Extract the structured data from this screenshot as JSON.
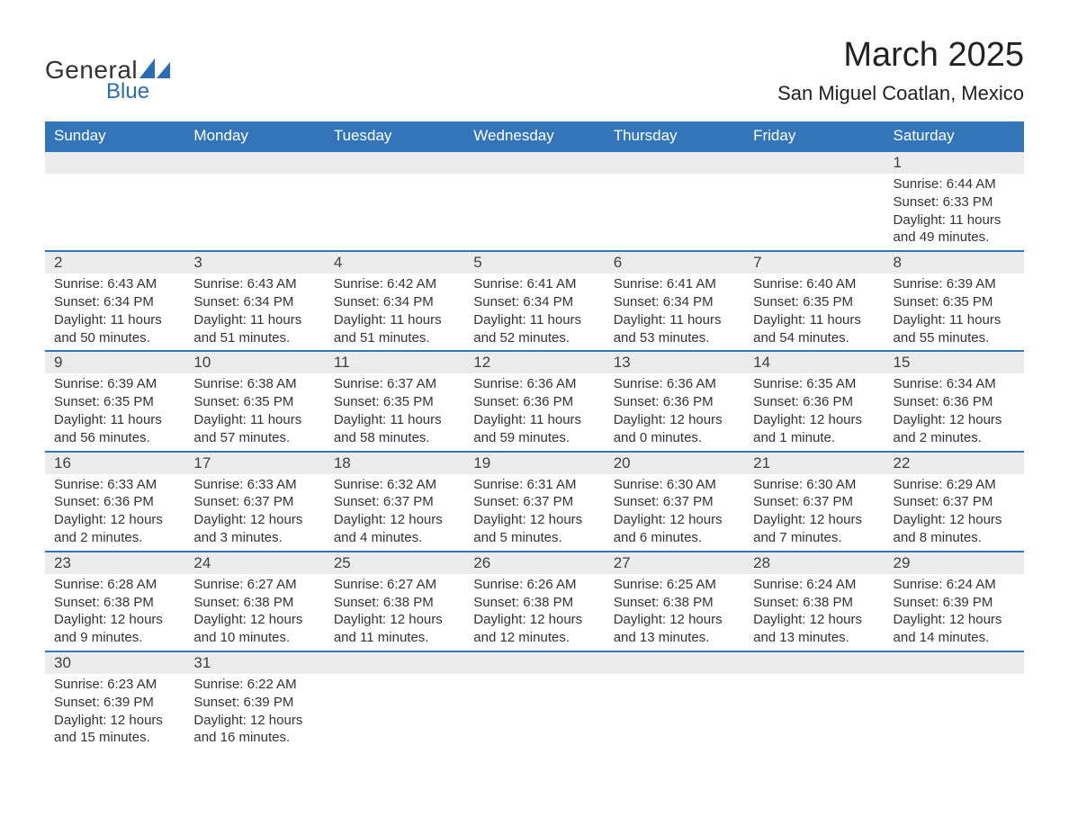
{
  "logo": {
    "text1": "General",
    "text2": "Blue",
    "brand_color": "#2a6db5"
  },
  "header": {
    "title": "March 2025",
    "location": "San Miguel Coatlan, Mexico"
  },
  "colors": {
    "header_bg": "#3275b9",
    "header_text": "#ffffff",
    "daynum_bg": "#ececec",
    "row_border": "#3275b9",
    "body_text": "#333333",
    "page_bg": "#ffffff"
  },
  "typography": {
    "title_fontsize": 38,
    "location_fontsize": 22,
    "dayheader_fontsize": 17,
    "daynum_fontsize": 17,
    "body_fontsize": 15,
    "font_family": "Arial"
  },
  "days_of_week": [
    "Sunday",
    "Monday",
    "Tuesday",
    "Wednesday",
    "Thursday",
    "Friday",
    "Saturday"
  ],
  "weeks": [
    [
      null,
      null,
      null,
      null,
      null,
      null,
      {
        "n": "1",
        "sunrise": "Sunrise: 6:44 AM",
        "sunset": "Sunset: 6:33 PM",
        "daylight": "Daylight: 11 hours and 49 minutes."
      }
    ],
    [
      {
        "n": "2",
        "sunrise": "Sunrise: 6:43 AM",
        "sunset": "Sunset: 6:34 PM",
        "daylight": "Daylight: 11 hours and 50 minutes."
      },
      {
        "n": "3",
        "sunrise": "Sunrise: 6:43 AM",
        "sunset": "Sunset: 6:34 PM",
        "daylight": "Daylight: 11 hours and 51 minutes."
      },
      {
        "n": "4",
        "sunrise": "Sunrise: 6:42 AM",
        "sunset": "Sunset: 6:34 PM",
        "daylight": "Daylight: 11 hours and 51 minutes."
      },
      {
        "n": "5",
        "sunrise": "Sunrise: 6:41 AM",
        "sunset": "Sunset: 6:34 PM",
        "daylight": "Daylight: 11 hours and 52 minutes."
      },
      {
        "n": "6",
        "sunrise": "Sunrise: 6:41 AM",
        "sunset": "Sunset: 6:34 PM",
        "daylight": "Daylight: 11 hours and 53 minutes."
      },
      {
        "n": "7",
        "sunrise": "Sunrise: 6:40 AM",
        "sunset": "Sunset: 6:35 PM",
        "daylight": "Daylight: 11 hours and 54 minutes."
      },
      {
        "n": "8",
        "sunrise": "Sunrise: 6:39 AM",
        "sunset": "Sunset: 6:35 PM",
        "daylight": "Daylight: 11 hours and 55 minutes."
      }
    ],
    [
      {
        "n": "9",
        "sunrise": "Sunrise: 6:39 AM",
        "sunset": "Sunset: 6:35 PM",
        "daylight": "Daylight: 11 hours and 56 minutes."
      },
      {
        "n": "10",
        "sunrise": "Sunrise: 6:38 AM",
        "sunset": "Sunset: 6:35 PM",
        "daylight": "Daylight: 11 hours and 57 minutes."
      },
      {
        "n": "11",
        "sunrise": "Sunrise: 6:37 AM",
        "sunset": "Sunset: 6:35 PM",
        "daylight": "Daylight: 11 hours and 58 minutes."
      },
      {
        "n": "12",
        "sunrise": "Sunrise: 6:36 AM",
        "sunset": "Sunset: 6:36 PM",
        "daylight": "Daylight: 11 hours and 59 minutes."
      },
      {
        "n": "13",
        "sunrise": "Sunrise: 6:36 AM",
        "sunset": "Sunset: 6:36 PM",
        "daylight": "Daylight: 12 hours and 0 minutes."
      },
      {
        "n": "14",
        "sunrise": "Sunrise: 6:35 AM",
        "sunset": "Sunset: 6:36 PM",
        "daylight": "Daylight: 12 hours and 1 minute."
      },
      {
        "n": "15",
        "sunrise": "Sunrise: 6:34 AM",
        "sunset": "Sunset: 6:36 PM",
        "daylight": "Daylight: 12 hours and 2 minutes."
      }
    ],
    [
      {
        "n": "16",
        "sunrise": "Sunrise: 6:33 AM",
        "sunset": "Sunset: 6:36 PM",
        "daylight": "Daylight: 12 hours and 2 minutes."
      },
      {
        "n": "17",
        "sunrise": "Sunrise: 6:33 AM",
        "sunset": "Sunset: 6:37 PM",
        "daylight": "Daylight: 12 hours and 3 minutes."
      },
      {
        "n": "18",
        "sunrise": "Sunrise: 6:32 AM",
        "sunset": "Sunset: 6:37 PM",
        "daylight": "Daylight: 12 hours and 4 minutes."
      },
      {
        "n": "19",
        "sunrise": "Sunrise: 6:31 AM",
        "sunset": "Sunset: 6:37 PM",
        "daylight": "Daylight: 12 hours and 5 minutes."
      },
      {
        "n": "20",
        "sunrise": "Sunrise: 6:30 AM",
        "sunset": "Sunset: 6:37 PM",
        "daylight": "Daylight: 12 hours and 6 minutes."
      },
      {
        "n": "21",
        "sunrise": "Sunrise: 6:30 AM",
        "sunset": "Sunset: 6:37 PM",
        "daylight": "Daylight: 12 hours and 7 minutes."
      },
      {
        "n": "22",
        "sunrise": "Sunrise: 6:29 AM",
        "sunset": "Sunset: 6:37 PM",
        "daylight": "Daylight: 12 hours and 8 minutes."
      }
    ],
    [
      {
        "n": "23",
        "sunrise": "Sunrise: 6:28 AM",
        "sunset": "Sunset: 6:38 PM",
        "daylight": "Daylight: 12 hours and 9 minutes."
      },
      {
        "n": "24",
        "sunrise": "Sunrise: 6:27 AM",
        "sunset": "Sunset: 6:38 PM",
        "daylight": "Daylight: 12 hours and 10 minutes."
      },
      {
        "n": "25",
        "sunrise": "Sunrise: 6:27 AM",
        "sunset": "Sunset: 6:38 PM",
        "daylight": "Daylight: 12 hours and 11 minutes."
      },
      {
        "n": "26",
        "sunrise": "Sunrise: 6:26 AM",
        "sunset": "Sunset: 6:38 PM",
        "daylight": "Daylight: 12 hours and 12 minutes."
      },
      {
        "n": "27",
        "sunrise": "Sunrise: 6:25 AM",
        "sunset": "Sunset: 6:38 PM",
        "daylight": "Daylight: 12 hours and 13 minutes."
      },
      {
        "n": "28",
        "sunrise": "Sunrise: 6:24 AM",
        "sunset": "Sunset: 6:38 PM",
        "daylight": "Daylight: 12 hours and 13 minutes."
      },
      {
        "n": "29",
        "sunrise": "Sunrise: 6:24 AM",
        "sunset": "Sunset: 6:39 PM",
        "daylight": "Daylight: 12 hours and 14 minutes."
      }
    ],
    [
      {
        "n": "30",
        "sunrise": "Sunrise: 6:23 AM",
        "sunset": "Sunset: 6:39 PM",
        "daylight": "Daylight: 12 hours and 15 minutes."
      },
      {
        "n": "31",
        "sunrise": "Sunrise: 6:22 AM",
        "sunset": "Sunset: 6:39 PM",
        "daylight": "Daylight: 12 hours and 16 minutes."
      },
      null,
      null,
      null,
      null,
      null
    ]
  ]
}
